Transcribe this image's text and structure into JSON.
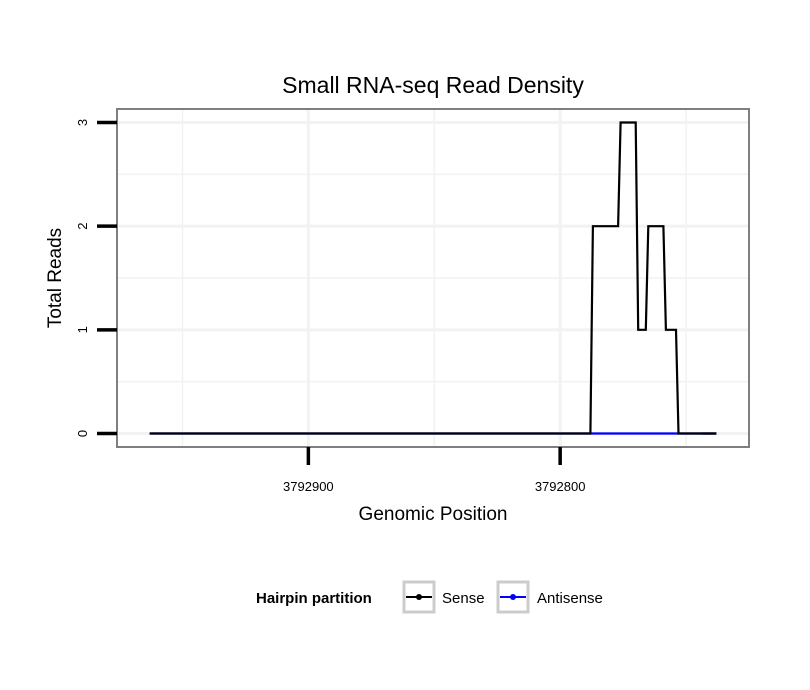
{
  "chart_data": {
    "type": "line",
    "title": "Small RNA-seq Read Density",
    "xlabel": "Genomic Position",
    "ylabel": "Total Reads",
    "xlim": [
      3792976,
      3792725
    ],
    "x_reversed": true,
    "ylim": [
      -0.13,
      3.13
    ],
    "x_ticks": [
      3792900,
      3792800
    ],
    "x_tick_labels": [
      "3792900",
      "3792800"
    ],
    "y_ticks": [
      0,
      1,
      2,
      3
    ],
    "y_tick_labels": [
      "0",
      "1",
      "2",
      "3"
    ],
    "grid": true,
    "legend": {
      "title": "Hairpin partition",
      "position": "bottom",
      "entries": [
        {
          "name": "Sense",
          "color": "#000000"
        },
        {
          "name": "Antisense",
          "color": "#0000ff"
        }
      ]
    },
    "series": [
      {
        "name": "Antisense",
        "color": "#0000ff",
        "x": [
          3792963,
          3792788,
          3792787,
          3792753,
          3792752,
          3792738
        ],
        "values": [
          0,
          0,
          0,
          0,
          0,
          0
        ]
      },
      {
        "name": "Sense",
        "color": "#000000",
        "x": [
          3792963,
          3792788,
          3792787,
          3792777,
          3792776,
          3792770,
          3792769,
          3792766,
          3792765,
          3792759,
          3792758,
          3792754,
          3792753,
          3792745,
          3792744,
          3792738
        ],
        "values": [
          0,
          0,
          2,
          2,
          3,
          3,
          1,
          1,
          2,
          2,
          1,
          1,
          0,
          0,
          0,
          0
        ]
      }
    ]
  }
}
